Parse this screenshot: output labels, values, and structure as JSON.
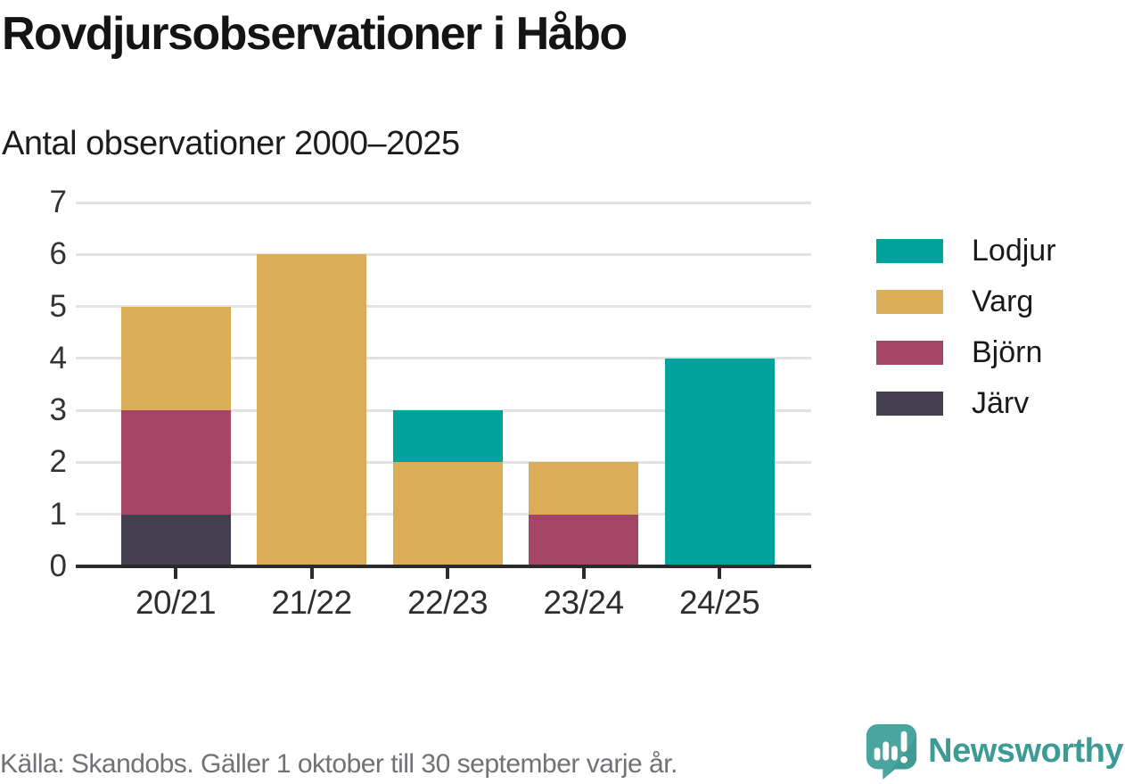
{
  "header": {
    "title": "Rovdjursobservationer i Håbo",
    "subtitle": "Antal observationer 2000–2025"
  },
  "chart_data": {
    "type": "bar",
    "stacked": true,
    "title": "Rovdjursobservationer i Håbo",
    "subtitle": "Antal observationer 2000–2025",
    "categories": [
      "20/21",
      "21/22",
      "22/23",
      "23/24",
      "24/25"
    ],
    "series": [
      {
        "name": "Järv",
        "color": "#433F4E",
        "values": [
          1,
          0,
          0,
          0,
          0
        ]
      },
      {
        "name": "Björn",
        "color": "#A54565",
        "values": [
          2,
          0,
          0,
          1,
          0
        ]
      },
      {
        "name": "Varg",
        "color": "#DBAD58",
        "values": [
          2,
          6,
          2,
          1,
          0
        ]
      },
      {
        "name": "Lodjur",
        "color": "#00A39B",
        "values": [
          0,
          0,
          1,
          0,
          4
        ]
      }
    ],
    "stack_order_bottom_to_top": [
      "Järv",
      "Björn",
      "Varg",
      "Lodjur"
    ],
    "totals": [
      5,
      6,
      3,
      2,
      4
    ],
    "xlabel": "",
    "ylabel": "",
    "y_axis": {
      "min": 0,
      "max": 7,
      "ticks": [
        0,
        1,
        2,
        3,
        4,
        5,
        6,
        7
      ]
    },
    "grid": "horizontal",
    "legend_position": "right"
  },
  "legend": {
    "items": [
      {
        "label": "Lodjur",
        "color": "#00A39B"
      },
      {
        "label": "Varg",
        "color": "#DBAD58"
      },
      {
        "label": "Björn",
        "color": "#A54565"
      },
      {
        "label": "Järv",
        "color": "#433F4E"
      }
    ]
  },
  "footer": {
    "source": "Källa: Skandobs. Gäller 1 oktober till 30 september varje år.",
    "brand": "Newsworthy"
  },
  "colors": {
    "gridline": "#e2e2e2",
    "axis": "#2b2b2b",
    "brand_teal": "#3d9b96",
    "logo_teal": "#4aa5a0"
  }
}
